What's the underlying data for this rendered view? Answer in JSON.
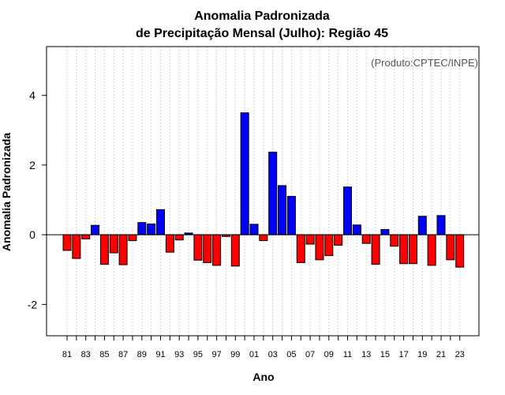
{
  "chart_data": {
    "type": "bar",
    "title_line1": "Anomalia Padronizada",
    "title_line2": "de Precipitação Mensal (Julho): Região 45",
    "xlabel": "Ano",
    "ylabel": "Anomalia Padronizada",
    "source": "(Produto:CPTEC/INPE)",
    "ylim": [
      -2.9,
      5.4
    ],
    "yticks": [
      -2,
      0,
      2,
      4
    ],
    "ytick_labels": [
      "-2",
      "0",
      "2",
      "4"
    ],
    "categories": [
      "81",
      "82",
      "83",
      "84",
      "85",
      "86",
      "87",
      "88",
      "89",
      "90",
      "91",
      "92",
      "93",
      "94",
      "95",
      "96",
      "97",
      "98",
      "99",
      "00",
      "01",
      "02",
      "03",
      "04",
      "05",
      "06",
      "07",
      "08",
      "09",
      "10",
      "11",
      "12",
      "13",
      "14",
      "15",
      "16",
      "17",
      "18",
      "19",
      "20",
      "21",
      "22",
      "23"
    ],
    "xtick_labels": [
      "81",
      "83",
      "85",
      "87",
      "89",
      "91",
      "93",
      "95",
      "97",
      "99",
      "01",
      "03",
      "05",
      "07",
      "09",
      "11",
      "13",
      "15",
      "17",
      "19",
      "21",
      "23"
    ],
    "values": [
      -0.45,
      -0.68,
      -0.12,
      0.27,
      -0.85,
      -0.52,
      -0.86,
      -0.17,
      0.35,
      0.31,
      0.72,
      -0.5,
      -0.15,
      0.05,
      -0.73,
      -0.8,
      -0.88,
      -0.05,
      -0.9,
      3.5,
      0.3,
      -0.17,
      2.37,
      1.41,
      1.1,
      -0.8,
      -0.27,
      -0.72,
      -0.6,
      -0.3,
      1.37,
      0.28,
      -0.25,
      -0.85,
      0.15,
      -0.33,
      -0.83,
      -0.83,
      0.53,
      -0.88,
      0.55,
      -0.72,
      -0.93
    ],
    "colors": {
      "positive": "#0000ff",
      "negative": "#ff0000"
    },
    "grid": true
  }
}
